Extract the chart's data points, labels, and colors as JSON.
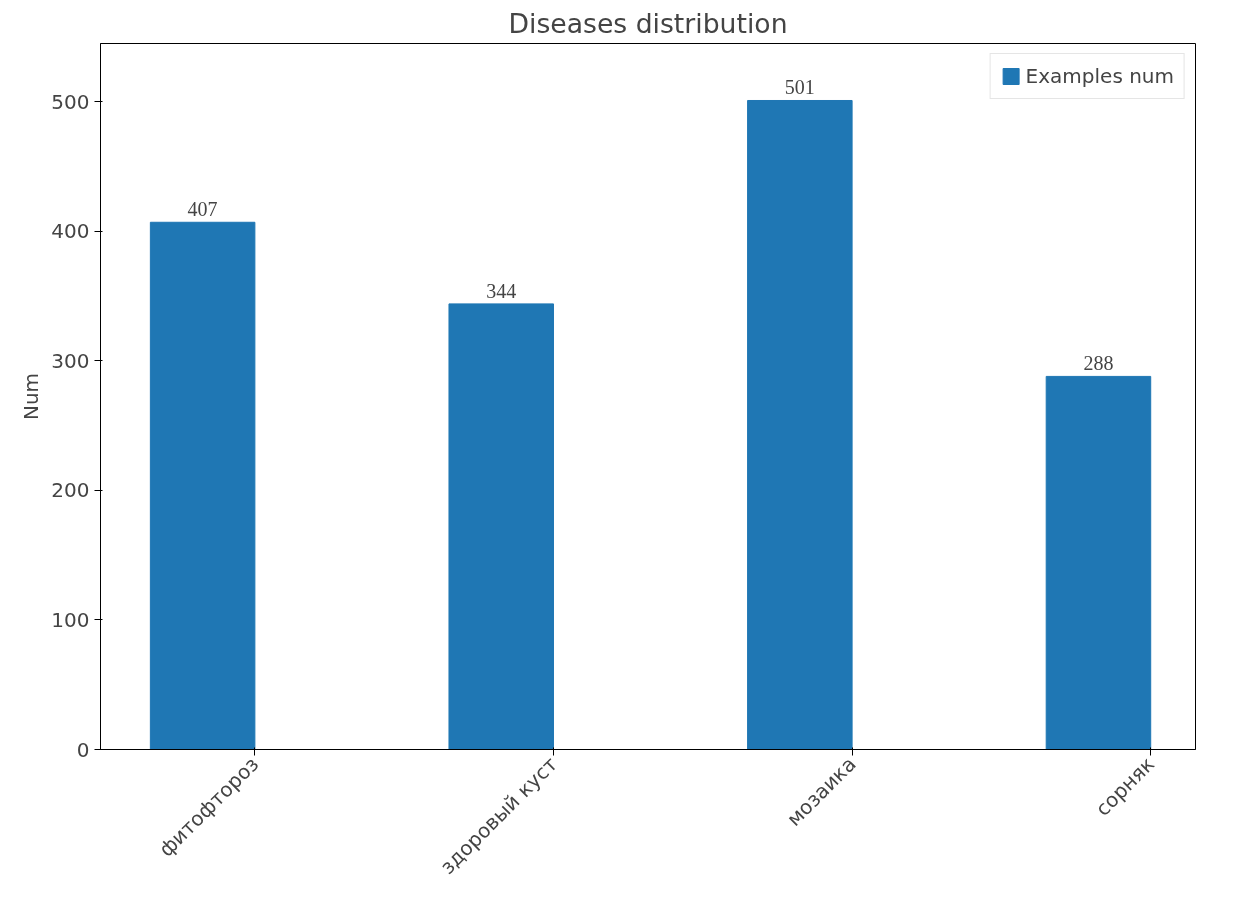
{
  "chart_data": {
    "type": "bar",
    "title": "Diseases distribution",
    "ylabel": "Num",
    "categories": [
      "фитофтороз",
      "здоровый куст",
      "мозаика",
      "сорняк"
    ],
    "series": [
      {
        "name": "Examples num",
        "color": "#1f77b4",
        "values": [
          407,
          344,
          501,
          288
        ]
      }
    ],
    "ylim": [
      0,
      545
    ],
    "yticks": [
      0,
      100,
      200,
      300,
      400,
      500
    ],
    "data_labels": true,
    "legend": "top right",
    "grid": false
  }
}
